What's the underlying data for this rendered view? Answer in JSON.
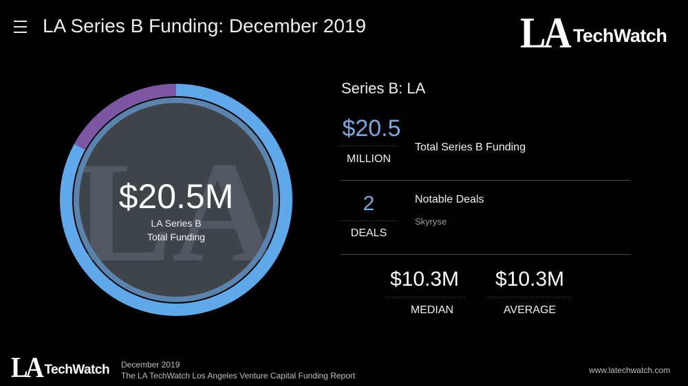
{
  "header": {
    "title": "LA Series B Funding: December 2019",
    "menu_icon": "hamburger-menu-icon"
  },
  "brand": {
    "logo_la": "LA",
    "logo_techwatch": "TechWatch"
  },
  "donut": {
    "watermark": "LA",
    "value": "$20.5M",
    "sub_line1": "LA Series B",
    "sub_line2": "Total Funding",
    "fraction_purple": 0.17,
    "colors": {
      "ring_blue": "#5fa8ea",
      "ring_purple": "#7d56a1",
      "inner_fill": "#3f444b"
    }
  },
  "stats": {
    "section_title": "Series B: LA",
    "total": {
      "value": "$20.5",
      "unit": "MILLION",
      "label": "Total Series B Funding"
    },
    "deals": {
      "value": "2",
      "unit": "DEALS",
      "label": "Notable Deals",
      "note": "Skyryse"
    },
    "median": {
      "value": "$10.3M",
      "label": "MEDIAN"
    },
    "average": {
      "value": "$10.3M",
      "label": "AVERAGE"
    },
    "accent_color": "#7ba7dd"
  },
  "footer": {
    "line1": "December 2019",
    "line2": "The LA TechWatch Los Angeles Venture Capital Funding Report",
    "url": "www.latechwatch.com"
  }
}
